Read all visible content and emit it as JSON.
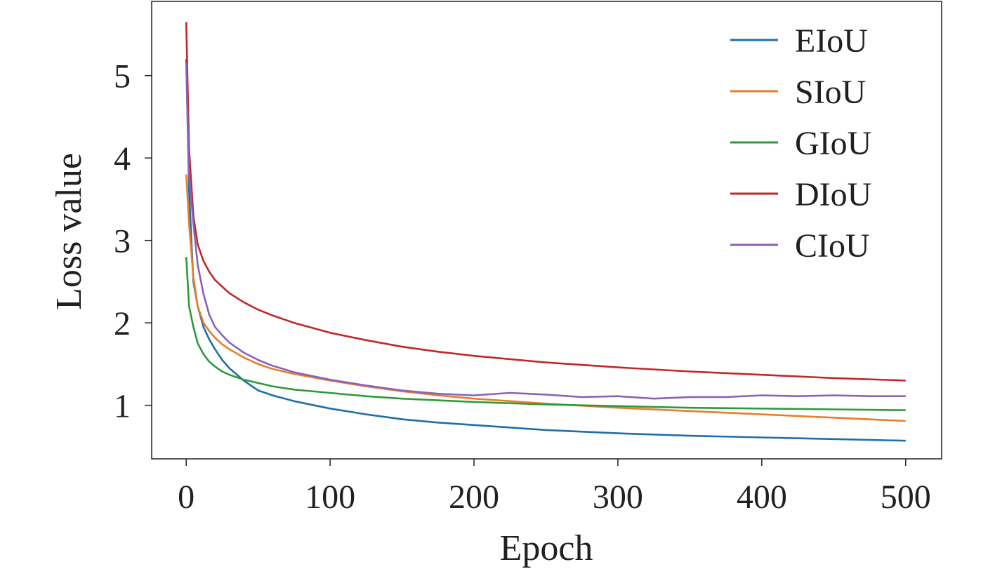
{
  "chart_data": {
    "type": "line",
    "xlabel": "Epoch",
    "ylabel": "Loss value",
    "xlim": [
      -24,
      525
    ],
    "ylim": [
      0.35,
      5.9
    ],
    "xticks": [
      0,
      100,
      200,
      300,
      400,
      500
    ],
    "yticks": [
      1,
      2,
      3,
      4,
      5
    ],
    "xtick_labels": [
      "0",
      "100",
      "200",
      "300",
      "400",
      "500"
    ],
    "ytick_labels": [
      "1",
      "2",
      "3",
      "4",
      "5"
    ],
    "grid": false,
    "legend_position": "top-right",
    "series": [
      {
        "name": "EIoU",
        "color": "#1f6fa8",
        "x": [
          0,
          2,
          5,
          8,
          12,
          16,
          20,
          25,
          30,
          40,
          50,
          60,
          75,
          100,
          125,
          150,
          175,
          200,
          250,
          300,
          350,
          400,
          450,
          500
        ],
        "y": [
          5.2,
          3.6,
          2.5,
          2.2,
          1.95,
          1.8,
          1.68,
          1.55,
          1.45,
          1.3,
          1.18,
          1.12,
          1.05,
          0.96,
          0.89,
          0.83,
          0.79,
          0.76,
          0.7,
          0.66,
          0.63,
          0.61,
          0.59,
          0.57
        ]
      },
      {
        "name": "SIoU",
        "color": "#e87d2a",
        "x": [
          0,
          2,
          5,
          8,
          12,
          16,
          20,
          25,
          30,
          40,
          50,
          60,
          75,
          100,
          125,
          150,
          175,
          200,
          250,
          300,
          350,
          400,
          450,
          500
        ],
        "y": [
          3.8,
          3.2,
          2.55,
          2.2,
          2.0,
          1.9,
          1.82,
          1.74,
          1.68,
          1.58,
          1.5,
          1.44,
          1.38,
          1.3,
          1.23,
          1.17,
          1.12,
          1.08,
          1.02,
          0.97,
          0.93,
          0.89,
          0.85,
          0.81
        ]
      },
      {
        "name": "GIoU",
        "color": "#2e9a3a",
        "x": [
          0,
          2,
          5,
          8,
          12,
          16,
          20,
          25,
          30,
          40,
          50,
          60,
          75,
          100,
          125,
          150,
          175,
          200,
          250,
          300,
          350,
          400,
          450,
          500
        ],
        "y": [
          2.8,
          2.2,
          1.95,
          1.75,
          1.62,
          1.53,
          1.47,
          1.41,
          1.37,
          1.31,
          1.27,
          1.23,
          1.19,
          1.15,
          1.11,
          1.08,
          1.06,
          1.04,
          1.01,
          0.99,
          0.97,
          0.96,
          0.95,
          0.94
        ]
      },
      {
        "name": "DIoU",
        "color": "#c0282a",
        "x": [
          0,
          2,
          5,
          8,
          12,
          16,
          20,
          25,
          30,
          40,
          50,
          60,
          75,
          100,
          125,
          150,
          175,
          200,
          250,
          300,
          350,
          400,
          450,
          500
        ],
        "y": [
          5.65,
          4.1,
          3.3,
          2.95,
          2.75,
          2.62,
          2.52,
          2.44,
          2.36,
          2.25,
          2.16,
          2.09,
          2.0,
          1.88,
          1.79,
          1.71,
          1.65,
          1.6,
          1.52,
          1.46,
          1.41,
          1.37,
          1.33,
          1.3
        ]
      },
      {
        "name": "CIoU",
        "color": "#8a63b8",
        "x": [
          0,
          2,
          5,
          8,
          12,
          16,
          20,
          25,
          30,
          40,
          50,
          60,
          75,
          100,
          125,
          150,
          175,
          200,
          225,
          250,
          275,
          300,
          325,
          350,
          375,
          400,
          425,
          450,
          475,
          500
        ],
        "y": [
          5.15,
          3.8,
          3.2,
          2.7,
          2.35,
          2.1,
          1.95,
          1.85,
          1.76,
          1.64,
          1.55,
          1.48,
          1.4,
          1.31,
          1.24,
          1.18,
          1.14,
          1.12,
          1.15,
          1.13,
          1.1,
          1.11,
          1.08,
          1.1,
          1.1,
          1.12,
          1.11,
          1.12,
          1.11,
          1.11
        ]
      }
    ]
  }
}
